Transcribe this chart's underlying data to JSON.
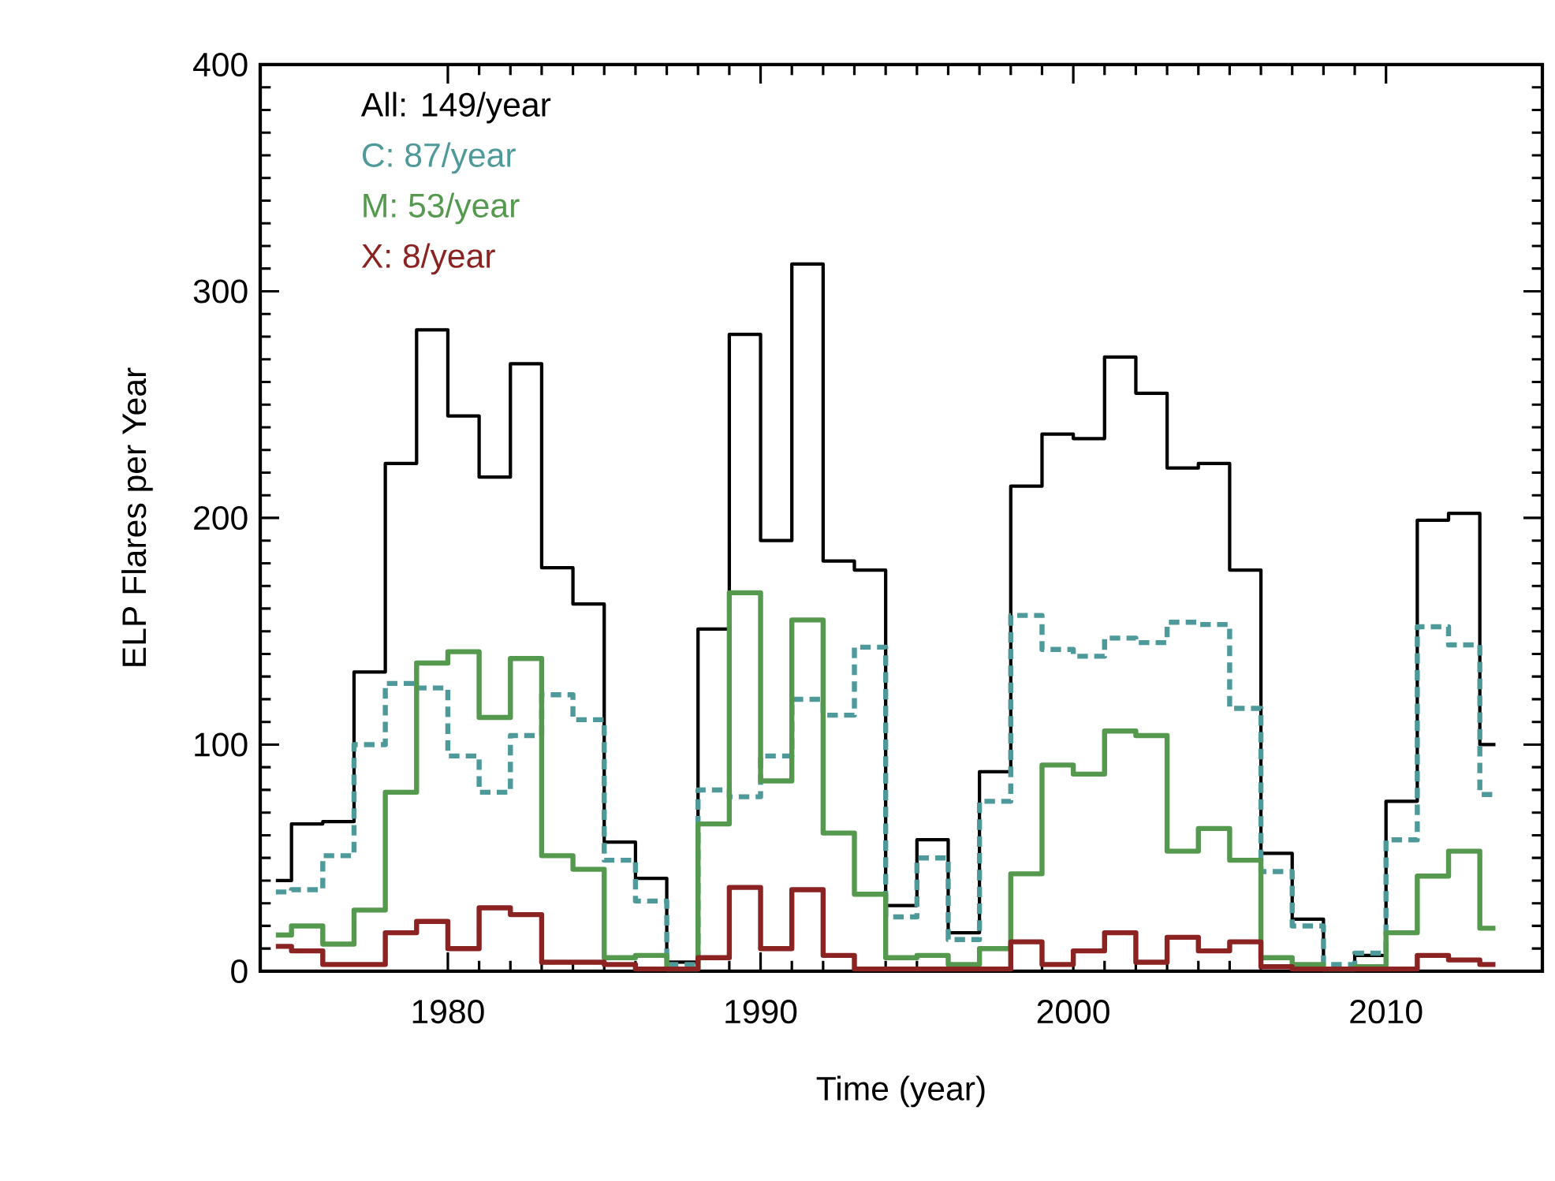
{
  "chart_data": {
    "type": "step",
    "xlabel": "Time (year)",
    "ylabel": "ELP Flares per Year",
    "x": [
      1974.5,
      1975.5,
      1976.5,
      1977.5,
      1978.5,
      1979.5,
      1980.5,
      1981.5,
      1982.5,
      1983.5,
      1984.5,
      1985.5,
      1986.5,
      1987.5,
      1988.5,
      1989.5,
      1990.5,
      1991.5,
      1992.5,
      1993.5,
      1994.5,
      1995.5,
      1996.5,
      1997.5,
      1998.5,
      1999.5,
      2000.5,
      2001.5,
      2002.5,
      2003.5,
      2004.5,
      2005.5,
      2006.5,
      2007.5,
      2008.5,
      2009.5,
      2010.5,
      2011.5,
      2012.5,
      2013.5
    ],
    "series": [
      {
        "name": "All: 149/year",
        "color": "#000000",
        "line_style": "solid",
        "values": [
          40,
          65,
          66,
          132,
          224,
          283,
          245,
          218,
          268,
          178,
          162,
          57,
          41,
          4,
          151,
          281,
          190,
          312,
          181,
          177,
          29,
          58,
          17,
          88,
          214,
          237,
          235,
          271,
          255,
          222,
          224,
          177,
          52,
          23,
          1,
          7,
          75,
          199,
          202,
          100
        ]
      },
      {
        "name": "C:  87/year",
        "color": "#4e9a9a",
        "line_style": "dashed",
        "values": [
          35,
          36,
          51,
          100,
          127,
          125,
          95,
          79,
          104,
          122,
          111,
          49,
          31,
          3,
          80,
          77,
          95,
          120,
          113,
          143,
          24,
          50,
          14,
          75,
          157,
          142,
          139,
          147,
          145,
          154,
          153,
          116,
          44,
          20,
          3,
          8,
          58,
          152,
          144,
          78
        ]
      },
      {
        "name": "M:  53/year",
        "color": "#55994f",
        "line_style": "solid",
        "values": [
          16,
          20,
          12,
          27,
          79,
          136,
          141,
          112,
          138,
          51,
          45,
          6,
          7,
          1,
          65,
          167,
          84,
          155,
          61,
          34,
          6,
          7,
          3,
          10,
          43,
          91,
          87,
          106,
          104,
          53,
          63,
          49,
          6,
          3,
          1,
          2,
          17,
          42,
          53,
          19
        ]
      },
      {
        "name": "X:   8/year",
        "color": "#8b2323",
        "line_style": "solid",
        "values": [
          11,
          9,
          3,
          3,
          17,
          22,
          10,
          28,
          25,
          4,
          4,
          3,
          1,
          1,
          6,
          37,
          10,
          36,
          7,
          1,
          1,
          1,
          1,
          1,
          13,
          3,
          9,
          17,
          4,
          15,
          9,
          13,
          2,
          1,
          1,
          1,
          1,
          7,
          5,
          3
        ]
      }
    ],
    "xlim": [
      1974,
      2015
    ],
    "xticks": [
      1980,
      1990,
      2000,
      2010
    ],
    "ylim": [
      0,
      400
    ],
    "yticks": [
      0,
      100,
      200,
      300,
      400
    ],
    "grid": false,
    "legend": "top left",
    "marker": "none"
  }
}
